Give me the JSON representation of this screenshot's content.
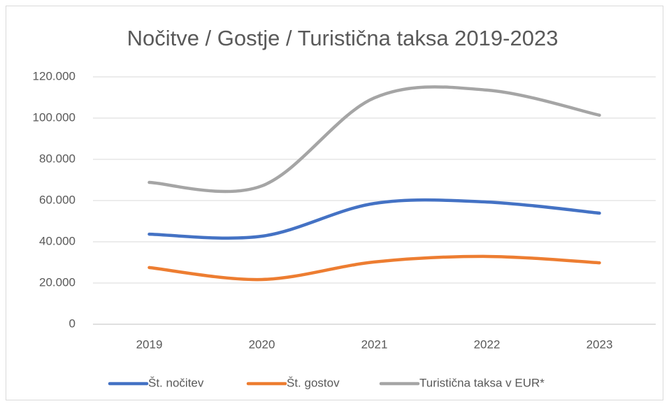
{
  "chart_data": {
    "type": "line",
    "title": "Nočitve / Gostje / Turistična taksa 2019-2023",
    "categories": [
      "2019",
      "2020",
      "2021",
      "2022",
      "2023"
    ],
    "series": [
      {
        "name": "Št. nočitev",
        "color": "#4472c4",
        "values": [
          43700,
          42700,
          58600,
          59300,
          53900
        ]
      },
      {
        "name": "Št. gostov",
        "color": "#ed7d31",
        "values": [
          27500,
          21700,
          30200,
          32900,
          29800
        ]
      },
      {
        "name": "Turistična taksa v EUR*",
        "color": "#a5a5a5",
        "values": [
          68800,
          67100,
          109800,
          113600,
          101400
        ]
      }
    ],
    "ylim": [
      0,
      120000
    ],
    "yticks": [
      0,
      {
        "value": 20000,
        "label": "20.000"
      },
      {
        "value": 40000,
        "label": "40.000"
      },
      {
        "value": 60000,
        "label": "60.000"
      },
      {
        "value": 80000,
        "label": "80.000"
      },
      {
        "value": 100000,
        "label": "100.000"
      },
      {
        "value": 120000,
        "label": "120.000"
      }
    ],
    "grid": true,
    "legend": "bottom"
  }
}
